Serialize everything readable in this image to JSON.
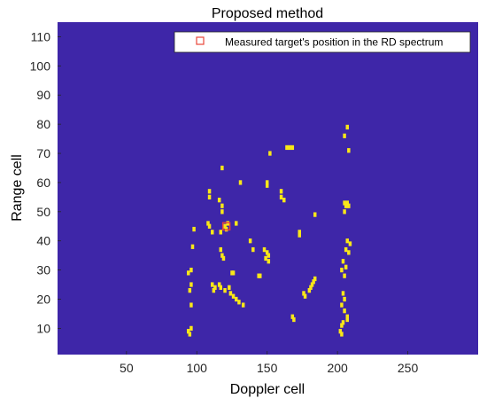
{
  "chart_data": {
    "type": "heatmap",
    "title": "Proposed method",
    "xlabel": "Doppler cell",
    "ylabel": "Range cell",
    "xlim": [
      1,
      300
    ],
    "ylim": [
      1,
      115
    ],
    "xticks": [
      50,
      100,
      150,
      200,
      250
    ],
    "yticks": [
      10,
      20,
      30,
      40,
      50,
      60,
      70,
      80,
      90,
      100,
      110
    ],
    "background_color": "#3E26A8",
    "cell_color": "#F9E718",
    "legend": {
      "label": "Measured target's position in the RD spectrum",
      "placement": "top-right",
      "marker_color": "#E8463A"
    },
    "measured_target": {
      "doppler": 121,
      "range": 45
    },
    "detected_cells": [
      [
        207,
        79
      ],
      [
        205,
        76
      ],
      [
        152,
        70
      ],
      [
        164,
        72
      ],
      [
        166,
        72
      ],
      [
        168,
        72
      ],
      [
        208,
        71
      ],
      [
        118,
        65
      ],
      [
        131,
        60
      ],
      [
        150,
        59
      ],
      [
        150,
        60
      ],
      [
        109,
        57
      ],
      [
        109,
        55
      ],
      [
        116,
        54
      ],
      [
        160,
        57
      ],
      [
        160,
        55
      ],
      [
        162,
        54
      ],
      [
        205,
        53
      ],
      [
        207,
        53
      ],
      [
        206,
        52
      ],
      [
        208,
        52
      ],
      [
        205,
        50
      ],
      [
        184,
        49
      ],
      [
        118,
        50
      ],
      [
        118,
        52
      ],
      [
        109,
        45
      ],
      [
        108,
        46
      ],
      [
        128,
        46
      ],
      [
        120,
        45
      ],
      [
        121,
        44
      ],
      [
        122,
        46
      ],
      [
        117,
        43
      ],
      [
        111,
        43
      ],
      [
        98,
        44
      ],
      [
        173,
        43
      ],
      [
        173,
        42
      ],
      [
        138,
        40
      ],
      [
        207,
        40
      ],
      [
        209,
        39
      ],
      [
        206,
        37
      ],
      [
        208,
        36
      ],
      [
        204,
        33
      ],
      [
        206,
        31
      ],
      [
        203,
        30
      ],
      [
        205,
        28
      ],
      [
        140,
        37
      ],
      [
        148,
        37
      ],
      [
        150,
        36
      ],
      [
        151,
        35
      ],
      [
        149,
        34
      ],
      [
        151,
        33
      ],
      [
        117,
        37
      ],
      [
        118,
        35
      ],
      [
        119,
        34
      ],
      [
        97,
        38
      ],
      [
        96,
        30
      ],
      [
        94,
        29
      ],
      [
        125,
        29
      ],
      [
        126,
        29
      ],
      [
        145,
        28
      ],
      [
        144,
        28
      ],
      [
        96,
        25
      ],
      [
        95,
        23
      ],
      [
        111,
        25
      ],
      [
        112,
        23
      ],
      [
        116,
        25
      ],
      [
        117,
        24
      ],
      [
        113,
        24
      ],
      [
        120,
        23
      ],
      [
        123,
        24
      ],
      [
        124,
        22
      ],
      [
        126,
        21
      ],
      [
        128,
        20
      ],
      [
        130,
        19
      ],
      [
        184,
        27
      ],
      [
        183,
        26
      ],
      [
        182,
        25
      ],
      [
        181,
        24
      ],
      [
        180,
        23
      ],
      [
        176,
        22
      ],
      [
        177,
        21
      ],
      [
        133,
        18
      ],
      [
        96,
        18
      ],
      [
        204,
        22
      ],
      [
        205,
        20
      ],
      [
        203,
        18
      ],
      [
        205,
        16
      ],
      [
        207,
        14
      ],
      [
        204,
        12
      ],
      [
        203,
        11
      ],
      [
        202,
        9
      ],
      [
        203,
        8
      ],
      [
        207,
        13
      ],
      [
        168,
        14
      ],
      [
        169,
        13
      ],
      [
        94,
        9
      ],
      [
        95,
        8
      ],
      [
        96,
        10
      ]
    ]
  }
}
